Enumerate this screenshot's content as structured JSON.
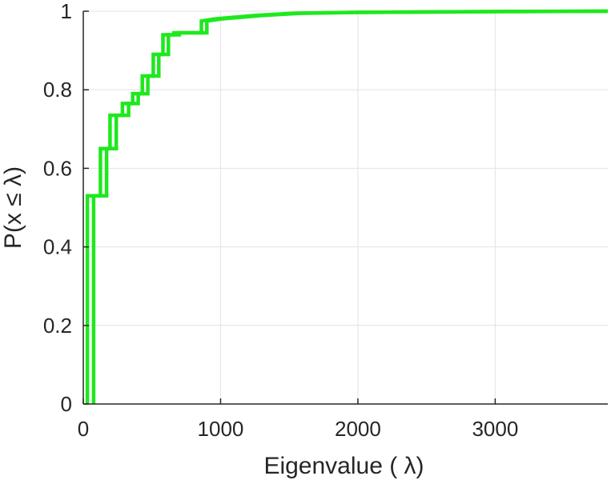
{
  "chart_data": {
    "type": "line",
    "title": "",
    "xlabel": "Eigenvalue (  λ)",
    "ylabel": "P(x ≤ λ)",
    "xlim": [
      0,
      3820
    ],
    "ylim": [
      0,
      1
    ],
    "grid": true,
    "legend": "none",
    "colors": {
      "series": "#1ee81e",
      "axis": "#262626",
      "grid": "#e3e3e3"
    },
    "xticks": [
      0,
      1000,
      2000,
      3000
    ],
    "xtick_labels": [
      "0",
      "1000",
      "2000",
      "3000"
    ],
    "yticks": [
      0,
      0.2,
      0.4,
      0.6,
      0.8,
      1
    ],
    "ytick_labels": [
      "0",
      "0.2",
      "0.4",
      "0.6",
      "0.8",
      "1"
    ],
    "series": [
      {
        "x": [
          75,
          75,
          170,
          170,
          240,
          240,
          330,
          330,
          400,
          400,
          470,
          470,
          550,
          550,
          620,
          620,
          700,
          700,
          900,
          900,
          1000,
          1100,
          1200,
          1300,
          1500,
          1600,
          2000,
          2500,
          3000,
          3820
        ],
        "y": [
          0,
          0.53,
          0.53,
          0.65,
          0.65,
          0.735,
          0.735,
          0.765,
          0.765,
          0.79,
          0.79,
          0.835,
          0.835,
          0.89,
          0.89,
          0.94,
          0.94,
          0.945,
          0.945,
          0.975,
          0.98,
          0.983,
          0.986,
          0.989,
          0.993,
          0.995,
          0.997,
          0.998,
          0.999,
          1
        ]
      },
      {
        "x": [
          30,
          30,
          125,
          125,
          195,
          195,
          285,
          285,
          360,
          360,
          430,
          430,
          510,
          510,
          580,
          580,
          660,
          660,
          860,
          860,
          950,
          1050,
          1150,
          1250,
          1450,
          1550,
          1950,
          2450,
          2950,
          3820
        ],
        "y": [
          0,
          0.53,
          0.53,
          0.65,
          0.65,
          0.735,
          0.735,
          0.765,
          0.765,
          0.79,
          0.79,
          0.835,
          0.835,
          0.89,
          0.89,
          0.94,
          0.94,
          0.945,
          0.945,
          0.975,
          0.98,
          0.983,
          0.986,
          0.989,
          0.993,
          0.995,
          0.997,
          0.998,
          0.999,
          1
        ]
      }
    ]
  }
}
